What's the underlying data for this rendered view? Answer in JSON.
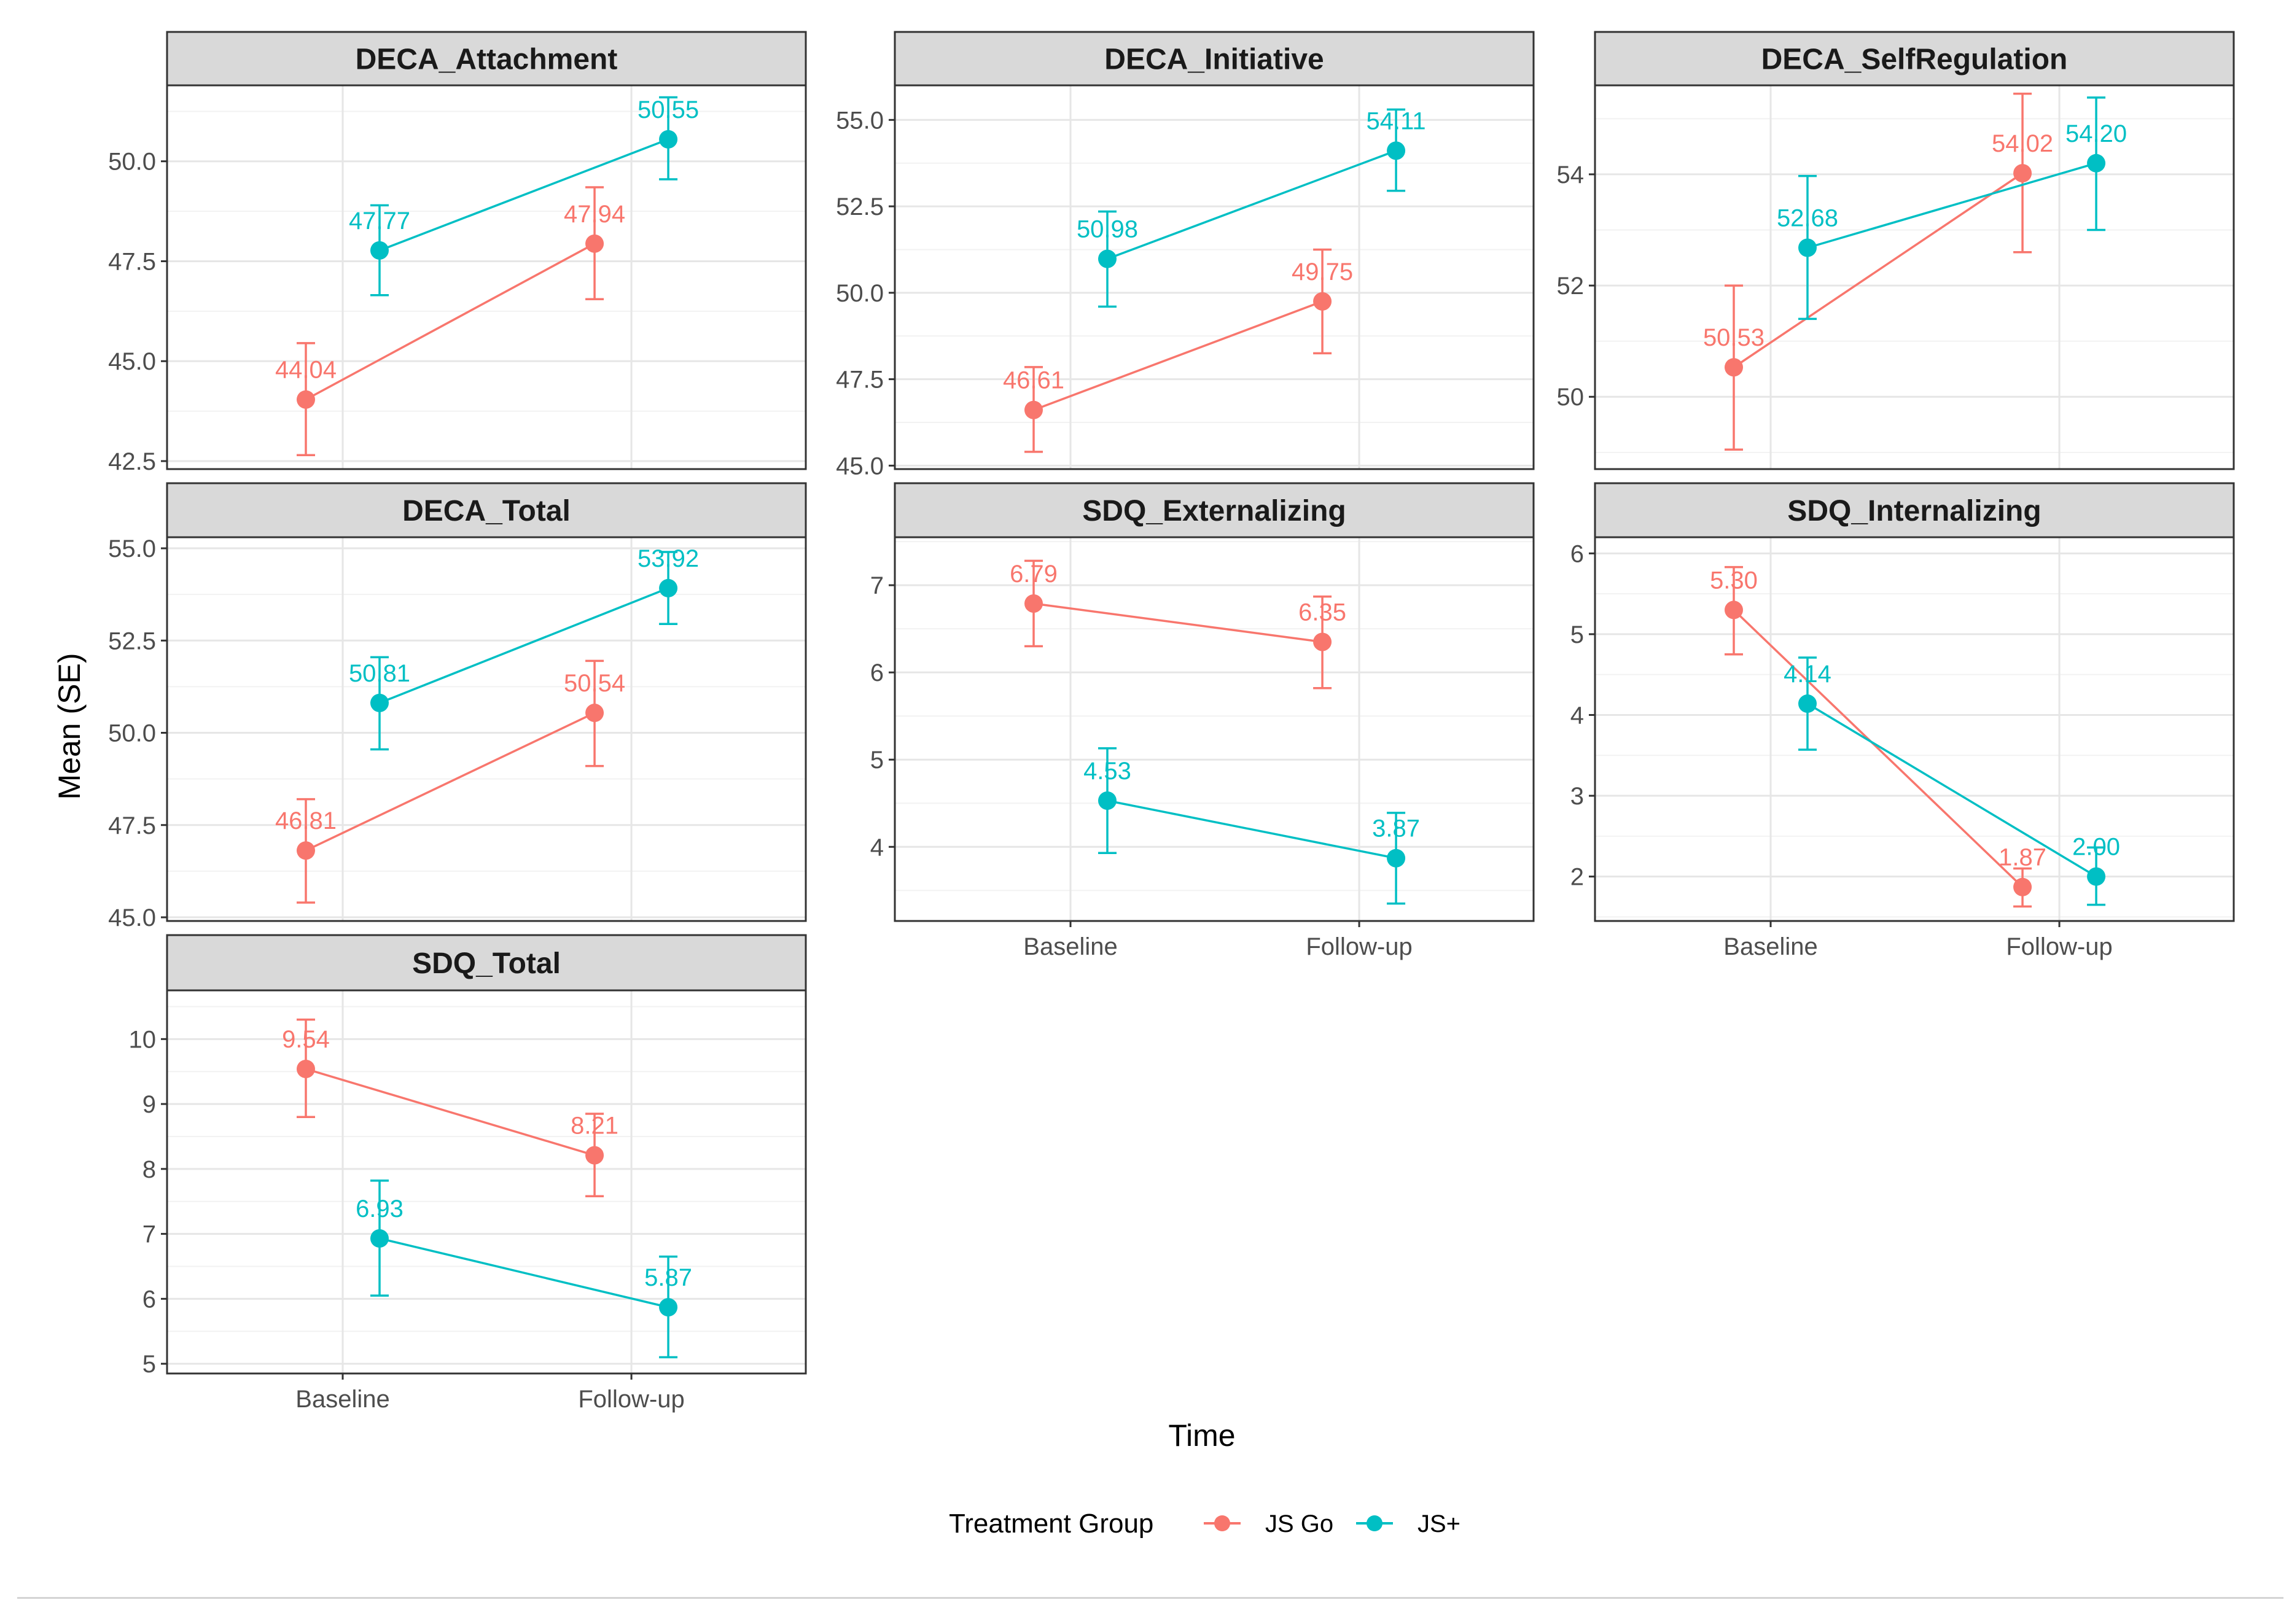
{
  "chart_data": {
    "type": "line",
    "x_categories": [
      "Baseline",
      "Follow-up"
    ],
    "xlabel": "Time",
    "ylabel": "Mean (SE)",
    "legend": {
      "title": "Treatment Group",
      "position": "bottom",
      "entries": [
        {
          "name": "JS Go",
          "color": "#F8766D"
        },
        {
          "name": "JS+",
          "color": "#00BFC4"
        }
      ]
    },
    "panels": [
      {
        "title": "DECA_Attachment",
        "ylim": [
          42.3,
          51.9
        ],
        "y_ticks": [
          42.5,
          45.0,
          47.5,
          50.0
        ],
        "series": [
          {
            "name": "JS Go",
            "values": [
              44.04,
              47.94
            ],
            "labels": [
              "44.04",
              "47.94"
            ],
            "se_lower": [
              42.65,
              46.55
            ],
            "se_upper": [
              45.45,
              49.35
            ]
          },
          {
            "name": "JS+",
            "values": [
              47.77,
              50.55
            ],
            "labels": [
              "47.77",
              "50.55"
            ],
            "se_lower": [
              46.65,
              49.55
            ],
            "se_upper": [
              48.9,
              51.6
            ]
          }
        ]
      },
      {
        "title": "DECA_Initiative",
        "ylim": [
          44.9,
          56.0
        ],
        "y_ticks": [
          45.0,
          47.5,
          50.0,
          52.5,
          55.0
        ],
        "series": [
          {
            "name": "JS Go",
            "values": [
              46.61,
              49.75
            ],
            "labels": [
              "46.61",
              "49.75"
            ],
            "se_lower": [
              45.4,
              48.25
            ],
            "se_upper": [
              47.85,
              51.25
            ]
          },
          {
            "name": "JS+",
            "values": [
              50.98,
              54.11
            ],
            "labels": [
              "50.98",
              "54.11"
            ],
            "se_lower": [
              49.6,
              52.95
            ],
            "se_upper": [
              52.35,
              55.3
            ]
          }
        ]
      },
      {
        "title": "DECA_SelfRegulation",
        "ylim": [
          48.7,
          55.6
        ],
        "y_ticks": [
          50,
          52,
          54
        ],
        "series": [
          {
            "name": "JS Go",
            "values": [
              50.53,
              54.02
            ],
            "labels": [
              "50.53",
              "54.02"
            ],
            "se_lower": [
              49.05,
              52.6
            ],
            "se_upper": [
              52.0,
              55.45
            ]
          },
          {
            "name": "JS+",
            "values": [
              52.68,
              54.2
            ],
            "labels": [
              "52.68",
              "54.20"
            ],
            "se_lower": [
              51.4,
              53.0
            ],
            "se_upper": [
              53.97,
              55.38
            ]
          }
        ]
      },
      {
        "title": "DECA_Total",
        "ylim": [
          44.9,
          55.3
        ],
        "y_ticks": [
          45.0,
          47.5,
          50.0,
          52.5,
          55.0
        ],
        "series": [
          {
            "name": "JS Go",
            "values": [
              46.81,
              50.54
            ],
            "labels": [
              "46.81",
              "50.54"
            ],
            "se_lower": [
              45.4,
              49.1
            ],
            "se_upper": [
              48.2,
              51.95
            ]
          },
          {
            "name": "JS+",
            "values": [
              50.81,
              53.92
            ],
            "labels": [
              "50.81",
              "53.92"
            ],
            "se_lower": [
              49.55,
              52.95
            ],
            "se_upper": [
              52.05,
              54.9
            ]
          }
        ]
      },
      {
        "title": "SDQ_Externalizing",
        "ylim": [
          3.15,
          7.55
        ],
        "y_ticks": [
          4,
          5,
          6,
          7
        ],
        "series": [
          {
            "name": "JS Go",
            "values": [
              6.79,
              6.35
            ],
            "labels": [
              "6.79",
              "6.35"
            ],
            "se_lower": [
              6.3,
              5.82
            ],
            "se_upper": [
              7.28,
              6.87
            ]
          },
          {
            "name": "JS+",
            "values": [
              4.53,
              3.87
            ],
            "labels": [
              "4.53",
              "3.87"
            ],
            "se_lower": [
              3.93,
              3.35
            ],
            "se_upper": [
              5.13,
              4.39
            ]
          }
        ]
      },
      {
        "title": "SDQ_Internalizing",
        "ylim": [
          1.45,
          6.2
        ],
        "y_ticks": [
          2,
          3,
          4,
          5,
          6
        ],
        "series": [
          {
            "name": "JS Go",
            "values": [
              5.3,
              1.87
            ],
            "labels": [
              "5.30",
              "1.87"
            ],
            "se_lower": [
              4.75,
              1.63
            ],
            "se_upper": [
              5.83,
              2.1
            ]
          },
          {
            "name": "JS+",
            "values": [
              4.14,
              2.0
            ],
            "labels": [
              "4.14",
              "2.00"
            ],
            "se_lower": [
              3.57,
              1.65
            ],
            "se_upper": [
              4.71,
              2.36
            ]
          }
        ]
      },
      {
        "title": "SDQ_Total",
        "ylim": [
          4.85,
          10.75
        ],
        "y_ticks": [
          5,
          6,
          7,
          8,
          9,
          10
        ],
        "series": [
          {
            "name": "JS Go",
            "values": [
              9.54,
              8.21
            ],
            "labels": [
              "9.54",
              "8.21"
            ],
            "se_lower": [
              8.8,
              7.58
            ],
            "se_upper": [
              10.3,
              8.85
            ]
          },
          {
            "name": "JS+",
            "values": [
              6.93,
              5.87
            ],
            "labels": [
              "6.93",
              "5.87"
            ],
            "se_lower": [
              6.05,
              5.1
            ],
            "se_upper": [
              7.82,
              6.65
            ]
          }
        ]
      }
    ]
  }
}
